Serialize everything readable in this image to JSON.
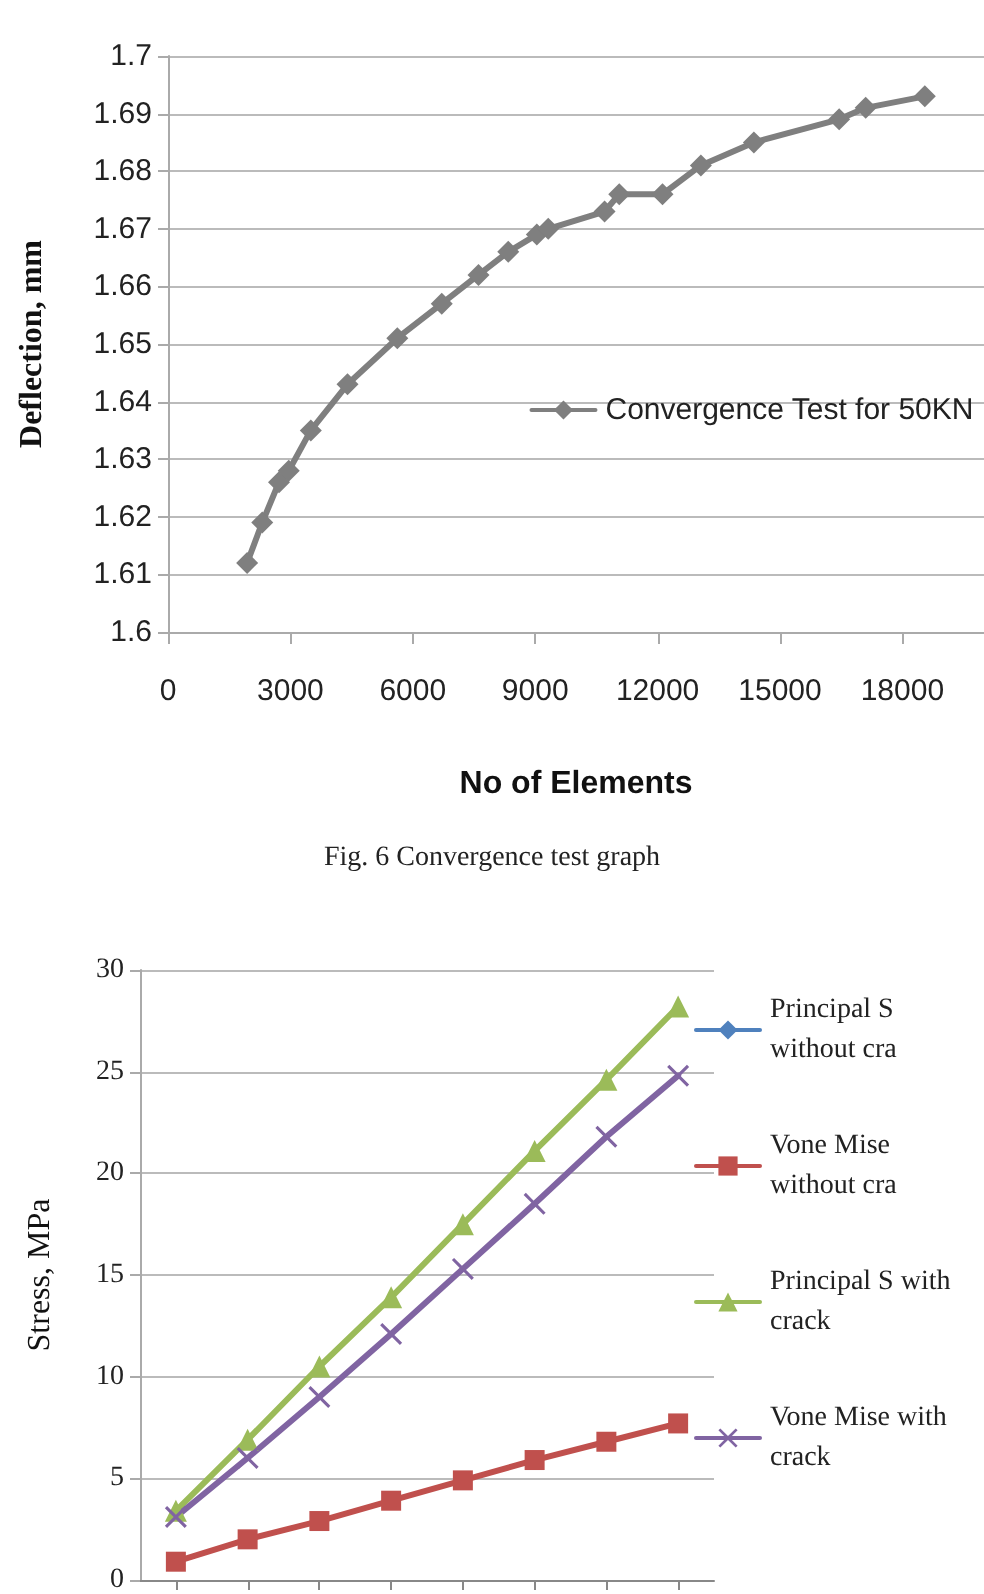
{
  "chart_data": [
    {
      "type": "line",
      "xlabel": "No of Elements",
      "ylabel": "Deflection, mm",
      "annotations": [
        "Fig. 6 Convergence test graph"
      ],
      "x": [
        1940,
        2310,
        2720,
        2960,
        3500,
        4400,
        5620,
        6710,
        7610,
        8340,
        9040,
        9320,
        10700,
        11060,
        12120,
        13060,
        14360,
        16450,
        17100,
        18550
      ],
      "series": [
        {
          "name": "Convergence Test for 50KN",
          "color": "#7f7f7f",
          "values": [
            1.612,
            1.619,
            1.626,
            1.628,
            1.635,
            1.643,
            1.651,
            1.657,
            1.662,
            1.666,
            1.669,
            1.67,
            1.673,
            1.676,
            1.676,
            1.681,
            1.685,
            1.689,
            1.691,
            1.693
          ]
        }
      ],
      "xlim": [
        0,
        20000
      ],
      "xticks": [
        0,
        3000,
        6000,
        9000,
        12000,
        15000,
        18000
      ],
      "ylim": [
        1.6,
        1.7
      ],
      "yticks": [
        1.6,
        1.61,
        1.62,
        1.63,
        1.64,
        1.65,
        1.66,
        1.67,
        1.68,
        1.69,
        1.7
      ],
      "grid": "y",
      "legend": "right",
      "marker": "diamond",
      "line_style": "solid"
    },
    {
      "type": "line",
      "ylabel": "Stress, MPa",
      "categories": [
        null,
        null,
        null,
        null,
        null,
        null,
        null,
        null
      ],
      "series": [
        {
          "name": "Principal S without cra",
          "color": "#4f81bd",
          "marker": "diamond",
          "values": [
            null,
            null,
            null,
            null,
            null,
            null,
            null,
            null
          ]
        },
        {
          "name": "Vone Mise without cra",
          "color": "#c0504d",
          "marker": "square",
          "values": [
            0.9,
            2,
            2.9,
            3.9,
            4.9,
            5.9,
            6.8,
            7.7
          ]
        },
        {
          "name": "Principal S with crack",
          "color": "#9bbb59",
          "marker": "triangle",
          "values": [
            3.4,
            6.9,
            10.5,
            13.9,
            17.5,
            21.1,
            24.6,
            28.2
          ]
        },
        {
          "name": "Vone Mise with crack",
          "color": "#8064a2",
          "marker": "cross",
          "values": [
            3.1,
            6.0,
            9.0,
            12.1,
            15.3,
            18.5,
            21.8,
            24.8
          ]
        }
      ],
      "ylim": [
        0,
        30
      ],
      "yticks": [
        0,
        5,
        10,
        15,
        20,
        25,
        30
      ],
      "grid": "y",
      "legend": "right",
      "tick_labels": "y",
      "line_style": "solid"
    }
  ]
}
